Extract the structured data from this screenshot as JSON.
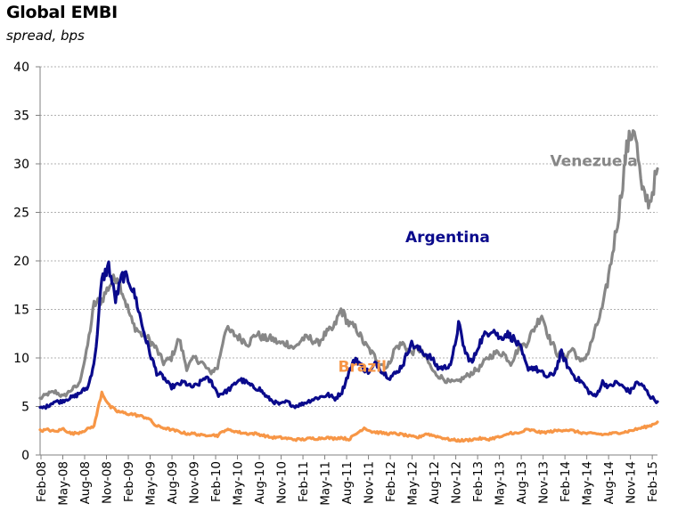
{
  "chart_data": {
    "type": "line",
    "title": "Global EMBI",
    "subtitle": "spread, bps",
    "xlabel": "",
    "ylabel": "",
    "ylim": [
      0,
      40
    ],
    "yticks": [
      0,
      5,
      10,
      15,
      20,
      25,
      30,
      35,
      40
    ],
    "grid": true,
    "x_ticklabels": [
      "Feb-08",
      "May-08",
      "Aug-08",
      "Nov-08",
      "Feb-09",
      "May-09",
      "Aug-09",
      "Nov-09",
      "Feb-10",
      "May-10",
      "Aug-10",
      "Nov-10",
      "Feb-11",
      "May-11",
      "Aug-11",
      "Nov-11",
      "Feb-12",
      "May-12",
      "Aug-12",
      "Nov-12",
      "Feb-13",
      "May-13",
      "Aug-13",
      "Nov-13",
      "Feb-14",
      "May-14",
      "Aug-14",
      "Nov-14",
      "Feb-15"
    ],
    "series": [
      {
        "name": "Venezuela",
        "color": "#878787",
        "values": [
          5.8,
          6.3,
          6.5,
          6.0,
          6.7,
          7.2,
          10.5,
          15.5,
          16.0,
          17.5,
          18.5,
          16.0,
          13.5,
          12.5,
          12.0,
          11.0,
          9.5,
          10.0,
          12.0,
          9.0,
          10.0,
          9.5,
          8.5,
          9.0,
          13.0,
          12.5,
          12.0,
          11.5,
          12.5,
          12.0,
          12.0,
          11.5,
          11.5,
          11.0,
          12.0,
          12.0,
          11.5,
          12.5,
          13.0,
          15.0,
          13.5,
          13.0,
          11.5,
          10.5,
          9.5,
          9.0,
          11.0,
          11.5,
          10.5,
          11.0,
          10.0,
          8.5,
          8.0,
          7.5,
          7.5,
          8.0,
          8.5,
          9.0,
          10.0,
          10.5,
          10.5,
          9.5,
          11.0,
          11.5,
          13.0,
          14.5,
          12.0,
          10.5,
          10.0,
          11.0,
          9.5,
          10.5,
          13.0,
          15.5,
          20.0,
          25.0,
          31.5,
          34.0,
          27.0,
          26.0,
          29.5
        ],
        "label_position": [
          0.897,
          0.744
        ]
      },
      {
        "name": "Argentina",
        "color": "#0a0a8c",
        "values": [
          4.8,
          5.0,
          5.5,
          5.5,
          5.8,
          6.0,
          6.5,
          7.0,
          10.0,
          18.0,
          19.5,
          16.0,
          18.5,
          18.0,
          16.0,
          13.0,
          10.5,
          8.5,
          8.0,
          7.0,
          7.2,
          7.5,
          7.0,
          7.2,
          8.0,
          7.5,
          6.2,
          6.5,
          7.0,
          7.8,
          7.5,
          7.0,
          6.8,
          6.0,
          5.5,
          5.2,
          5.5,
          5.0,
          5.2,
          5.5,
          5.8,
          6.0,
          6.2,
          5.8,
          6.5,
          8.5,
          10.0,
          9.0,
          8.5,
          9.5,
          8.5,
          8.0,
          8.5,
          9.5,
          11.5,
          11.0,
          10.5,
          10.0,
          9.0,
          9.0,
          9.5,
          13.5,
          10.5,
          9.5,
          11.5,
          12.5,
          13.0,
          12.0,
          12.5,
          12.0,
          11.0,
          9.0,
          9.0,
          8.5,
          8.0,
          8.5,
          10.5,
          9.0,
          8.0,
          7.5,
          6.5,
          6.0,
          7.5,
          7.0,
          7.5,
          7.0,
          6.5,
          7.5,
          7.0,
          6.0,
          5.5
        ],
        "label_position": [
          0.66,
          0.548
        ]
      },
      {
        "name": "Brazil",
        "color": "#f79646",
        "values": [
          2.5,
          2.6,
          2.4,
          2.7,
          2.2,
          2.3,
          2.6,
          3.0,
          6.5,
          5.0,
          4.5,
          4.3,
          4.2,
          4.0,
          3.8,
          3.0,
          2.8,
          2.6,
          2.4,
          2.2,
          2.2,
          2.0,
          2.1,
          2.0,
          2.6,
          2.5,
          2.3,
          2.2,
          2.2,
          2.0,
          1.8,
          1.8,
          1.7,
          1.6,
          1.6,
          1.7,
          1.7,
          1.8,
          1.7,
          1.8,
          1.6,
          2.2,
          2.8,
          2.4,
          2.3,
          2.2,
          2.2,
          2.1,
          1.9,
          1.8,
          2.2,
          2.0,
          1.8,
          1.6,
          1.5,
          1.5,
          1.6,
          1.7,
          1.6,
          1.8,
          1.9,
          2.3,
          2.2,
          2.6,
          2.5,
          2.3,
          2.4,
          2.5,
          2.6,
          2.5,
          2.3,
          2.2,
          2.2,
          2.1,
          2.2,
          2.3,
          2.4,
          2.6,
          2.8,
          3.0,
          3.4
        ],
        "label_position": [
          0.522,
          0.215
        ]
      }
    ]
  }
}
